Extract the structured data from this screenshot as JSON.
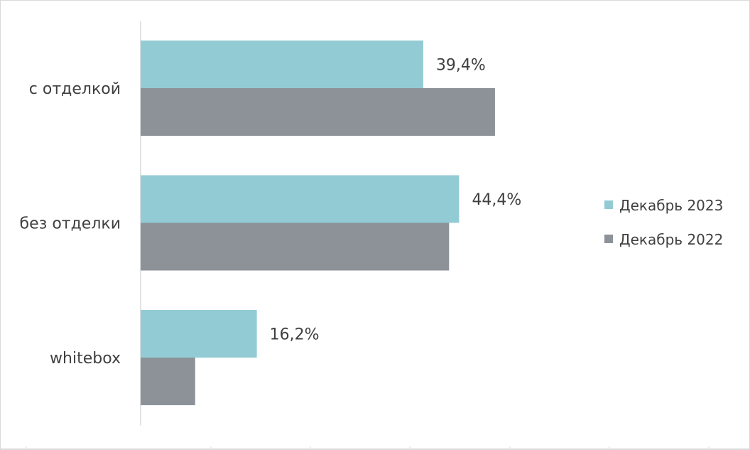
{
  "chart_data": {
    "type": "bar",
    "orientation": "horizontal",
    "categories": [
      "с отделкой",
      "без отделки",
      "whitebox"
    ],
    "series": [
      {
        "name": "Декабрь 2023",
        "values": [
          39.4,
          44.4,
          16.2
        ],
        "labels": [
          "39,4%",
          "44,4%",
          "16,2%"
        ],
        "color": "#93cbd4"
      },
      {
        "name": "Декабрь 2022",
        "values": [
          49.4,
          43.0,
          7.6
        ],
        "labels": [
          "",
          "",
          ""
        ],
        "color": "#8c9298"
      }
    ],
    "title": "",
    "xlabel": "",
    "ylabel": "",
    "xlim": [
      0,
      85
    ],
    "unit": "%",
    "legend_position": "right",
    "grid": false
  }
}
